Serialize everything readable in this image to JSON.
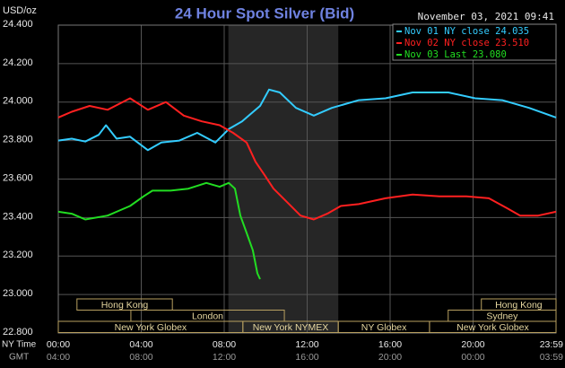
{
  "chart_data": {
    "type": "line",
    "title": "24 Hour Spot Silver (Bid)",
    "timestamp": "November 03, 2021 09:41",
    "ylabel": "USD/oz",
    "x_row_label": "NY Time",
    "x2_row_label": "GMT",
    "xlim": [
      0,
      24
    ],
    "xticks": [
      {
        "value": 0,
        "label": "00:00"
      },
      {
        "value": 4,
        "label": "04:00"
      },
      {
        "value": 8,
        "label": "08:00"
      },
      {
        "value": 12,
        "label": "12:00"
      },
      {
        "value": 16,
        "label": "16:00"
      },
      {
        "value": 20,
        "label": "20:00"
      },
      {
        "value": 24,
        "label": "23:59"
      }
    ],
    "x2tick_labels": [
      "04:00",
      "08:00",
      "12:00",
      "16:00",
      "20:00",
      "00:00",
      "03:59"
    ],
    "ylim": [
      22.8,
      24.4
    ],
    "yticks": [
      {
        "value": 22.8,
        "label": "22.800"
      },
      {
        "value": 23.0,
        "label": "23.000"
      },
      {
        "value": 23.2,
        "label": "23.200"
      },
      {
        "value": 23.4,
        "label": "23.400"
      },
      {
        "value": 23.6,
        "label": "23.600"
      },
      {
        "value": 23.8,
        "label": "23.800"
      },
      {
        "value": 24.0,
        "label": "24.000"
      },
      {
        "value": 24.2,
        "label": "24.200"
      },
      {
        "value": 24.4,
        "label": "24.400"
      }
    ],
    "grid": true,
    "shaded": [
      8.2,
      13.5
    ],
    "series": [
      {
        "name": "Nov 01 NY close 24.035",
        "color": "#33ccff",
        "x": [
          0,
          0.65,
          1.3,
          1.95,
          2.3,
          2.81,
          3.46,
          4.32,
          4.97,
          5.84,
          6.7,
          7.57,
          8.22,
          8.86,
          9.73,
          10.16,
          10.68,
          11.46,
          12.32,
          13.19,
          14.49,
          15.78,
          17.08,
          18.81,
          20.1,
          21.4,
          22.7,
          24
        ],
        "values": [
          23.8,
          23.81,
          23.795,
          23.83,
          23.88,
          23.81,
          23.82,
          23.75,
          23.79,
          23.8,
          23.84,
          23.79,
          23.86,
          23.9,
          23.98,
          24.065,
          24.05,
          23.97,
          23.93,
          23.97,
          24.01,
          24.02,
          24.05,
          24.05,
          24.02,
          24.01,
          23.97,
          23.92
        ]
      },
      {
        "name": "Nov 02 NY close 23.510",
        "color": "#ff2020",
        "x": [
          0,
          0.65,
          1.51,
          2.38,
          3.46,
          4.32,
          5.19,
          6.05,
          6.92,
          7.78,
          8.43,
          9.08,
          9.51,
          9.95,
          10.38,
          11.03,
          11.68,
          12.32,
          12.97,
          13.62,
          14.49,
          15.78,
          17.08,
          18.38,
          19.68,
          20.76,
          21.62,
          22.27,
          23.14,
          24
        ],
        "values": [
          23.92,
          23.95,
          23.98,
          23.96,
          24.02,
          23.96,
          24.0,
          23.93,
          23.9,
          23.88,
          23.84,
          23.79,
          23.69,
          23.62,
          23.55,
          23.48,
          23.41,
          23.39,
          23.42,
          23.46,
          23.47,
          23.5,
          23.52,
          23.51,
          23.51,
          23.5,
          23.45,
          23.41,
          23.41,
          23.43
        ]
      },
      {
        "name": "Nov 03 Last 23.080",
        "color": "#22dd22",
        "x": [
          0,
          0.65,
          1.3,
          2.38,
          3.46,
          4.11,
          4.54,
          5.41,
          6.27,
          7.14,
          7.78,
          8.22,
          8.52,
          8.78,
          9.08,
          9.38,
          9.6,
          9.73
        ],
        "values": [
          23.43,
          23.42,
          23.39,
          23.41,
          23.46,
          23.51,
          23.54,
          23.54,
          23.55,
          23.58,
          23.56,
          23.58,
          23.55,
          23.41,
          23.32,
          23.23,
          23.11,
          23.08
        ]
      }
    ],
    "sessions": [
      [
        {
          "label": "Hong Kong",
          "start": 0.9,
          "end": 5.5
        },
        {
          "label": "Hong Kong",
          "start": 20.4,
          "end": 24
        }
      ],
      [
        {
          "label": "London",
          "start": 3.5,
          "end": 10.9
        },
        {
          "label": "Sydney",
          "start": 18.8,
          "end": 24
        }
      ],
      [
        {
          "label": "New York Globex",
          "start": 0,
          "end": 8.9
        },
        {
          "label": "New York NYMEX",
          "start": 8.9,
          "end": 13.5
        },
        {
          "label": "NY Globex",
          "start": 13.5,
          "end": 17.9
        },
        {
          "label": "New York Globex",
          "start": 17.9,
          "end": 24
        }
      ]
    ]
  }
}
